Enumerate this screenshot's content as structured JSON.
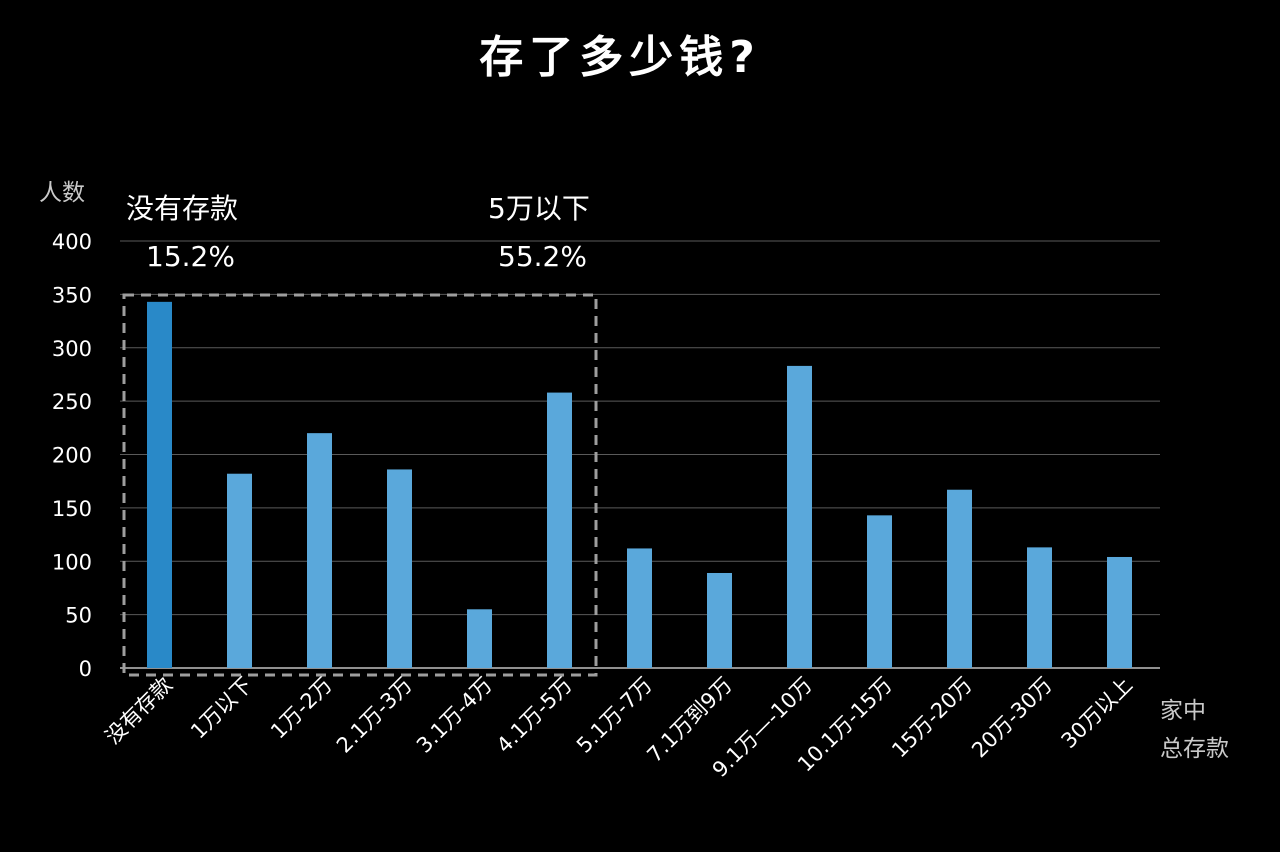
{
  "chart_data": {
    "type": "bar",
    "title": "存了多少钱?",
    "ylabel": "人数",
    "xlabel": [
      "家中",
      "总存款"
    ],
    "ylim": [
      0,
      400
    ],
    "yticks": [
      0,
      50,
      100,
      150,
      200,
      250,
      300,
      350,
      400
    ],
    "grid": true,
    "categories": [
      "没有存款",
      "1万以下",
      "1万-2万",
      "2.1万-3万",
      "3.1万-4万",
      "4.1万-5万",
      "5.1万-7万",
      "7.1万到9万",
      "9.1万—-10万",
      "10.1万-15万",
      "15万-20万",
      "20万-30万",
      "30万以上"
    ],
    "values": [
      343,
      182,
      220,
      186,
      55,
      258,
      112,
      89,
      283,
      143,
      167,
      113,
      104
    ],
    "highlight_index": 0,
    "colors": {
      "bar": "#5aa8db",
      "bar_highlight": "#2989c8"
    },
    "annotations": [
      {
        "label": "没有存款",
        "value": "15.2%"
      },
      {
        "label": "5万以下",
        "value": "55.2%"
      }
    ]
  }
}
